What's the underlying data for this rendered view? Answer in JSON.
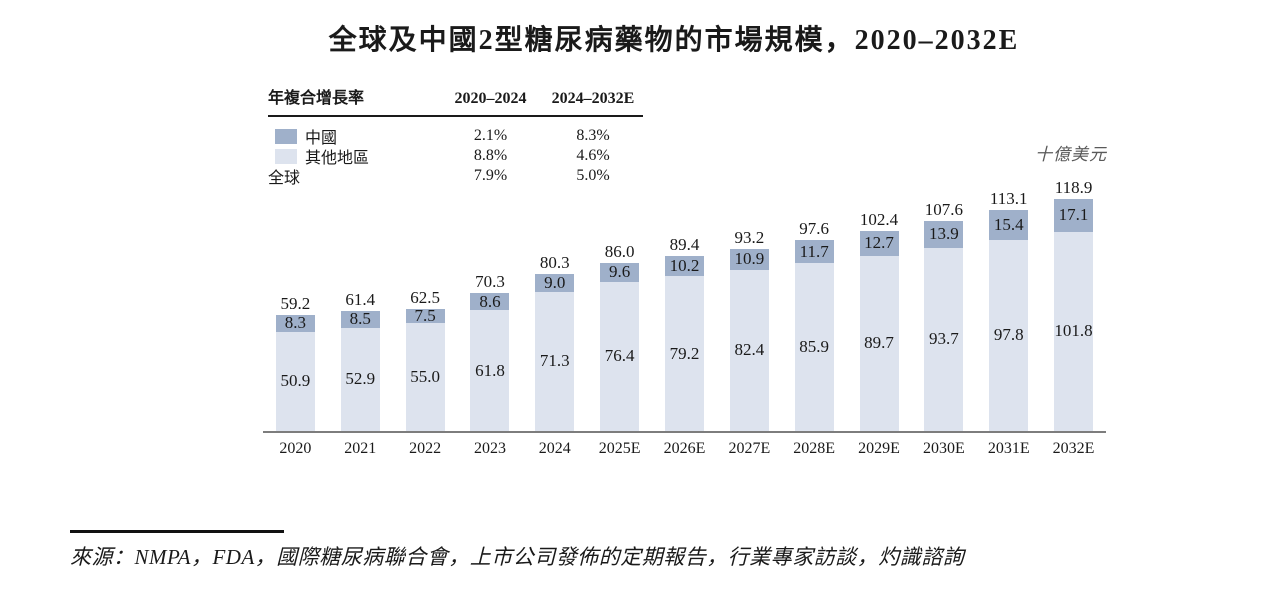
{
  "title": "全球及中國2型糖尿病藥物的市場規模，2020–2032E",
  "unit_label": "十億美元",
  "cagr_table": {
    "header": [
      "年複合增長率",
      "2020–2024",
      "2024–2032E"
    ],
    "rows": [
      {
        "label": "中國",
        "swatch": "china",
        "cagr_2020_2024": "2.1%",
        "cagr_2024_2032": "8.3%"
      },
      {
        "label": "其他地區",
        "swatch": "others",
        "cagr_2020_2024": "8.8%",
        "cagr_2024_2032": "4.6%"
      },
      {
        "label": "全球",
        "swatch": null,
        "cagr_2020_2024": "7.9%",
        "cagr_2024_2032": "5.0%"
      }
    ]
  },
  "chart_data": {
    "type": "bar",
    "stacked": true,
    "title": "全球及中國2型糖尿病藥物的市場規模，2020–2032E",
    "ylabel": "十億美元",
    "xlabel": "",
    "ylim": [
      0,
      130
    ],
    "grid": false,
    "legend_position": "top-left-table",
    "categories": [
      "2020",
      "2021",
      "2022",
      "2023",
      "2024",
      "2025E",
      "2026E",
      "2027E",
      "2028E",
      "2029E",
      "2030E",
      "2031E",
      "2032E"
    ],
    "series": [
      {
        "name": "中國",
        "color": "#9fb0ca",
        "values": [
          8.3,
          8.5,
          7.5,
          8.6,
          9.0,
          9.6,
          10.2,
          10.9,
          11.7,
          12.7,
          13.9,
          15.4,
          17.1
        ]
      },
      {
        "name": "其他地區",
        "color": "#dde3ee",
        "values": [
          50.9,
          52.9,
          55.0,
          61.8,
          71.3,
          76.4,
          79.2,
          82.4,
          85.9,
          89.7,
          93.7,
          97.8,
          101.8
        ]
      }
    ],
    "totals": [
      59.2,
      61.4,
      62.5,
      70.3,
      80.3,
      86.0,
      89.4,
      93.2,
      97.6,
      102.4,
      107.6,
      113.1,
      118.9
    ]
  },
  "source": "來源：NMPA，FDA，國際糖尿病聯合會，上市公司發佈的定期報告，行業專家訪談，灼識諮詢",
  "colors": {
    "china": "#9fb0ca",
    "others": "#dde3ee",
    "axis": "#7d7d7d",
    "text": "#1a1a1a"
  }
}
